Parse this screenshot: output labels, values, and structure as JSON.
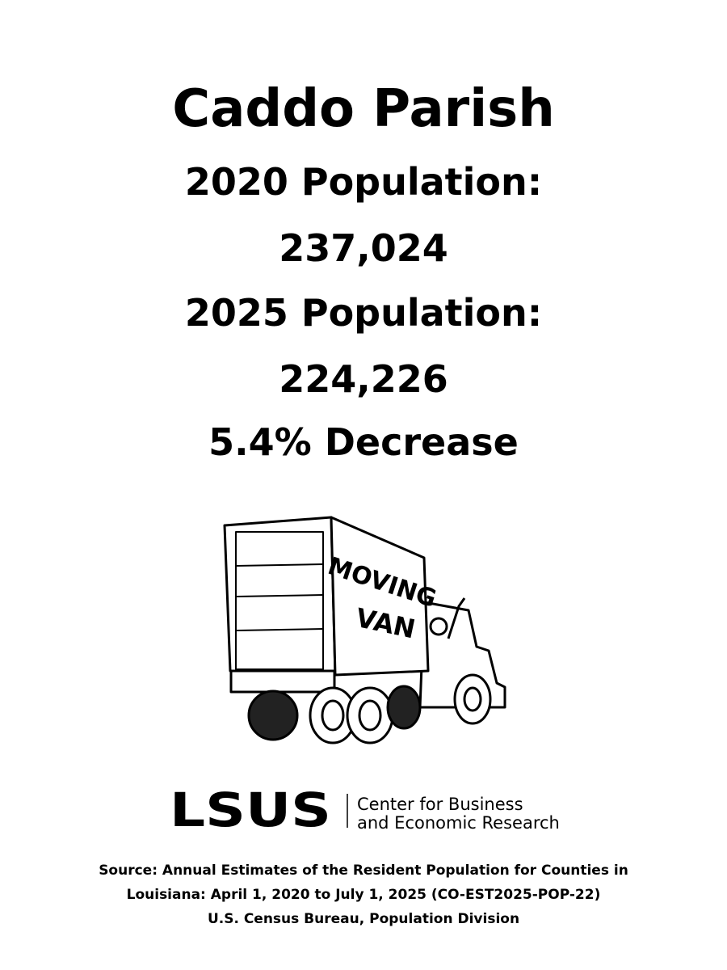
{
  "header": {
    "title": "Caddo Parish"
  },
  "stats": [
    {
      "label": "2020 Population:",
      "value": "237,024"
    },
    {
      "label": "2025 Population:",
      "value": "224,226"
    }
  ],
  "change": "5.4% Decrease",
  "illustration": {
    "lines": [
      "MOVING",
      "VAN"
    ]
  },
  "logo": {
    "mark": "LSUS",
    "lines": [
      "Center for Business",
      "and Economic Research"
    ]
  },
  "source": {
    "lines": [
      "Source: Annual Estimates of the Resident Population for Counties in",
      "Louisiana: April 1, 2020 to July 1, 2025 (CO-EST2025-POP-22)",
      "U.S. Census Bureau, Population Division"
    ]
  }
}
